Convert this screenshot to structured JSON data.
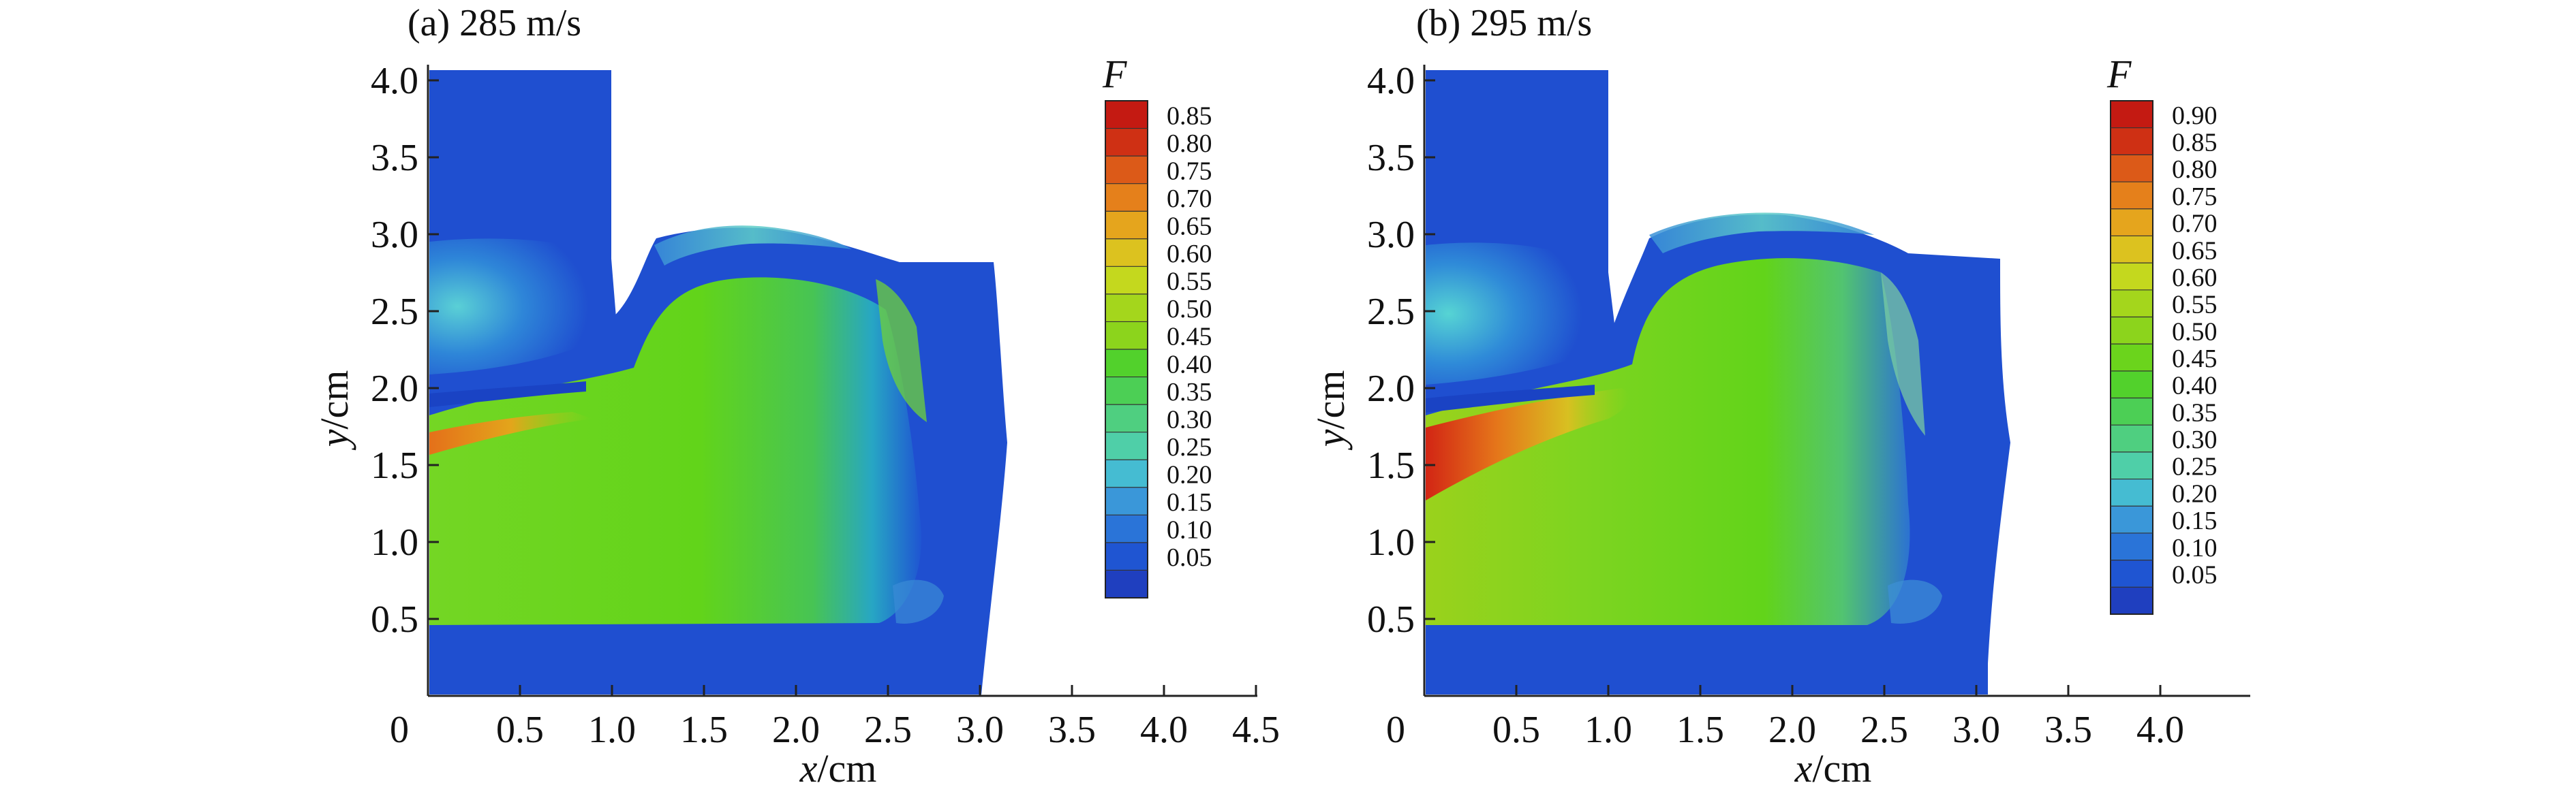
{
  "figure": {
    "panel_a_title": "(a) 285 m/s",
    "panel_b_title": "(b) 295 m/s"
  },
  "chart_data": [
    {
      "type": "heatmap",
      "title": "(a) 285 m/s",
      "xlabel": "x/cm",
      "ylabel": "y/cm",
      "x_ticks": [
        "0",
        "0.5",
        "1.0",
        "1.5",
        "2.0",
        "2.5",
        "3.0",
        "3.5",
        "4.0",
        "4.5"
      ],
      "y_ticks": [
        "0.5",
        "1.0",
        "1.5",
        "2.0",
        "2.5",
        "3.0",
        "3.5",
        "4.0"
      ],
      "xlim": [
        0,
        4.5
      ],
      "ylim": [
        0,
        4.1
      ],
      "colorbar": {
        "title": "F",
        "levels": [
          "0.85",
          "0.80",
          "0.75",
          "0.70",
          "0.65",
          "0.60",
          "0.55",
          "0.50",
          "0.45",
          "0.40",
          "0.35",
          "0.30",
          "0.25",
          "0.20",
          "0.15",
          "0.10",
          "0.05"
        ],
        "range": [
          0.0,
          0.9
        ]
      },
      "field": {
        "max_value": 0.85,
        "max_region": "x 0–1.0 cm, y 1.6–1.8 cm",
        "bulk_value": 0.5,
        "background_value": 0.05
      }
    },
    {
      "type": "heatmap",
      "title": "(b) 295 m/s",
      "xlabel": "x/cm",
      "ylabel": "y/cm",
      "x_ticks": [
        "0",
        "0.5",
        "1.0",
        "1.5",
        "2.0",
        "2.5",
        "3.0",
        "3.5",
        "4.0"
      ],
      "y_ticks": [
        "0.5",
        "1.0",
        "1.5",
        "2.0",
        "2.5",
        "3.0",
        "3.5",
        "4.0"
      ],
      "xlim": [
        0,
        4.5
      ],
      "ylim": [
        0,
        4.1
      ],
      "colorbar": {
        "title": "F",
        "levels": [
          "0.90",
          "0.85",
          "0.80",
          "0.75",
          "0.70",
          "0.65",
          "0.60",
          "0.55",
          "0.50",
          "0.45",
          "0.40",
          "0.35",
          "0.30",
          "0.25",
          "0.20",
          "0.15",
          "0.10",
          "0.05"
        ],
        "range": [
          0.0,
          0.95
        ]
      },
      "field": {
        "max_value": 0.9,
        "max_region": "x 0–1.0 cm, y 1.5–1.8 cm",
        "bulk_value": 0.5,
        "background_value": 0.05
      }
    }
  ]
}
